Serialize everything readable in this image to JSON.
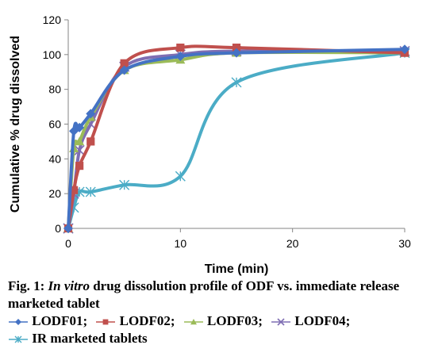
{
  "chart_data": {
    "type": "line",
    "xlabel": "Time (min)",
    "ylabel": "Cumulative % drug dissolved",
    "xlim": [
      0,
      30
    ],
    "ylim": [
      0,
      120
    ],
    "xticks": [
      0,
      10,
      20,
      30
    ],
    "yticks": [
      0,
      20,
      40,
      60,
      80,
      100,
      120
    ],
    "grid": false,
    "series": [
      {
        "name": "LODF01",
        "color": "#4472c4",
        "marker": "diamond",
        "x": [
          0,
          0.5,
          1,
          2,
          5,
          10,
          15,
          30
        ],
        "y": [
          0,
          56,
          58,
          66,
          91,
          99,
          101,
          103
        ]
      },
      {
        "name": "LODF02",
        "color": "#c0504d",
        "marker": "square",
        "x": [
          0,
          0.5,
          1,
          2,
          5,
          10,
          15,
          30
        ],
        "y": [
          0,
          22,
          36,
          50,
          95,
          104,
          104,
          101
        ]
      },
      {
        "name": "LODF03",
        "color": "#9bbb59",
        "marker": "triangle",
        "x": [
          0,
          0.5,
          1,
          2,
          5,
          10,
          15,
          30
        ],
        "y": [
          0,
          46,
          50,
          64,
          91,
          97,
          101,
          101
        ]
      },
      {
        "name": "LODF04",
        "color": "#7f6eb3",
        "marker": "x",
        "x": [
          0,
          0.5,
          1,
          2,
          5,
          10,
          15,
          30
        ],
        "y": [
          0,
          20,
          45,
          60,
          93,
          100,
          102,
          102
        ]
      },
      {
        "name": "IR marketed tablets",
        "color": "#4bacc6",
        "marker": "star",
        "x": [
          0,
          0.5,
          1,
          2,
          5,
          10,
          15,
          30
        ],
        "y": [
          0,
          12,
          21,
          21,
          25,
          30,
          84,
          101
        ]
      }
    ]
  },
  "caption": {
    "fig_label": "Fig. 1:",
    "title_italic": "In vitro",
    "title_rest": "drug dissolution profile of ODF vs. immediate release marketed tablet",
    "legend": [
      {
        "label": "LODF01;",
        "symbol": "diamond",
        "color": "#4472c4"
      },
      {
        "label": "LODF02;",
        "symbol": "square",
        "color": "#c0504d"
      },
      {
        "label": "LODF03;",
        "symbol": "triangle",
        "color": "#9bbb59"
      },
      {
        "label": "LODF04;",
        "symbol": "x",
        "color": "#7f6eb3"
      },
      {
        "label": "IR marketed tablets",
        "symbol": "star",
        "color": "#4bacc6"
      }
    ]
  }
}
